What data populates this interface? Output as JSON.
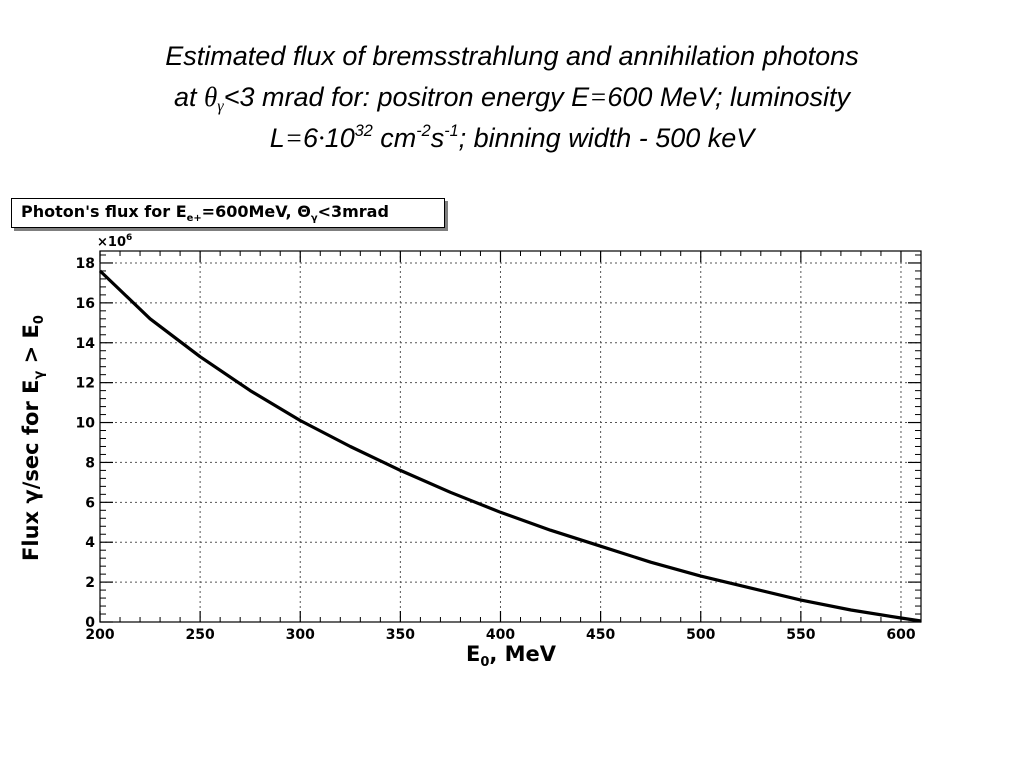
{
  "slide": {
    "title_l1": "Estimated flux of bremsstrahlung and annihilation photons",
    "title_l2_a": "at ",
    "theta": "θ",
    "gamma": "γ",
    "title_l2_b": "<3 mrad for: positron energy E",
    "eq": "=",
    "title_l2_c": "600 MeV; luminosity",
    "title_l3_a": "L",
    "title_l3_b": "6",
    "dot": "·",
    "title_l3_c": "10",
    "exp32": "32",
    "title_l3_d": " cm",
    "exp_m2": "-2",
    "title_l3_e": "s",
    "exp_m1": "-1",
    "title_l3_f": "; binning width - 500 keV"
  },
  "legend": {
    "text_a": "Photon's flux for E",
    "sub_e": "e+",
    "text_b": "=600MeV, ",
    "theta": "Θ",
    "sub_gamma": "γ",
    "text_c": "<3mrad"
  },
  "colors": {
    "curve": "#000000",
    "grid": "#555555",
    "frame": "#000000",
    "shadow": "#7f7f7f"
  },
  "chart_data": {
    "type": "line",
    "title": "Photon's flux for Ee+=600MeV, Θγ<3mrad",
    "xlabel": "E0,  MeV",
    "ylabel": "Flux γ/sec for Eγ > E0",
    "y_multiplier": "×10^6",
    "xlim": [
      200,
      610
    ],
    "ylim": [
      0,
      18.6
    ],
    "x_ticks": [
      200,
      250,
      300,
      350,
      400,
      450,
      500,
      550,
      600
    ],
    "x_tick_labels": [
      "200",
      "250",
      "300",
      "350",
      "400",
      "450",
      "500",
      "550",
      "600"
    ],
    "y_ticks": [
      0,
      2,
      4,
      6,
      8,
      10,
      12,
      14,
      16,
      18
    ],
    "y_tick_labels": [
      "0",
      "2",
      "4",
      "6",
      "8",
      "10",
      "12",
      "14",
      "16",
      "18"
    ],
    "grid": true,
    "legend_position": "top-left",
    "series": [
      {
        "x": [
          200,
          225,
          250,
          275,
          300,
          325,
          350,
          375,
          400,
          425,
          450,
          475,
          500,
          525,
          550,
          575,
          600
        ],
        "y": [
          17.6,
          15.2,
          13.3,
          11.6,
          10.1,
          8.8,
          7.6,
          6.5,
          5.5,
          4.6,
          3.8,
          3.0,
          2.3,
          1.7,
          1.1,
          0.6,
          0.2
        ]
      }
    ]
  }
}
